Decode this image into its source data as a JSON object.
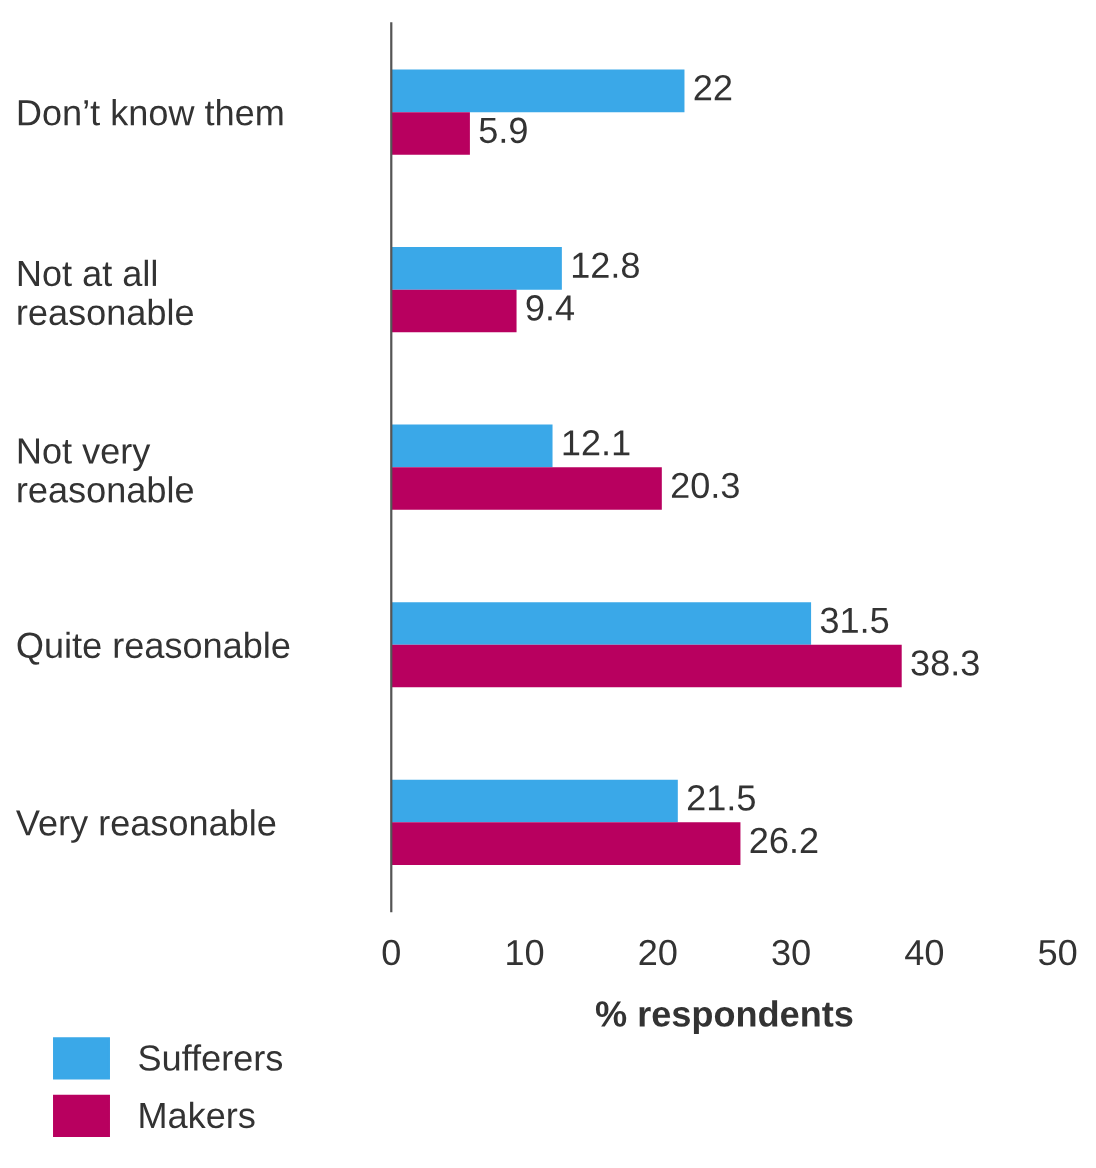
{
  "chart_data": {
    "type": "bar",
    "orientation": "horizontal",
    "categories": [
      "Don’t know them",
      "Not at all\nreasonable",
      "Not very\nreasonable",
      "Quite reasonable",
      "Very reasonable"
    ],
    "series": [
      {
        "name": "Sufferers",
        "color": "#3aa8e8",
        "values": [
          22,
          12.8,
          12.1,
          31.5,
          21.5
        ]
      },
      {
        "name": "Makers",
        "color": "#b8005f",
        "values": [
          5.9,
          9.4,
          20.3,
          38.3,
          26.2
        ]
      }
    ],
    "xlim": [
      0,
      50
    ],
    "xticks": [
      0,
      10,
      20,
      30,
      40,
      50
    ],
    "xlabel": "% respondents",
    "data_labels": true,
    "legend": "bottom left",
    "grid": false
  }
}
